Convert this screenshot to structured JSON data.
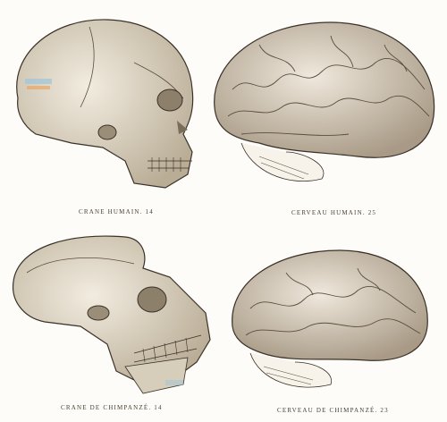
{
  "plate": {
    "figures": [
      {
        "id": "human-skull",
        "caption": "Crane humain. 14"
      },
      {
        "id": "human-brain",
        "caption": "Cerveau humain. 25"
      },
      {
        "id": "chimp-skull",
        "caption": "Crane de Chimpanzé. 14"
      },
      {
        "id": "chimp-brain",
        "caption": "Cerveau de Chimpanzé. 23"
      }
    ]
  },
  "colors": {
    "paper": "#fdfcf8",
    "bone": "#e8e0cf",
    "bone_shadow": "#b8ab94",
    "ink": "#3a3128",
    "brain": "#ddd3c3",
    "brain_shadow": "#a89a86",
    "tint_blue": "#9ec5d8",
    "tint_orange": "#e8a766"
  }
}
